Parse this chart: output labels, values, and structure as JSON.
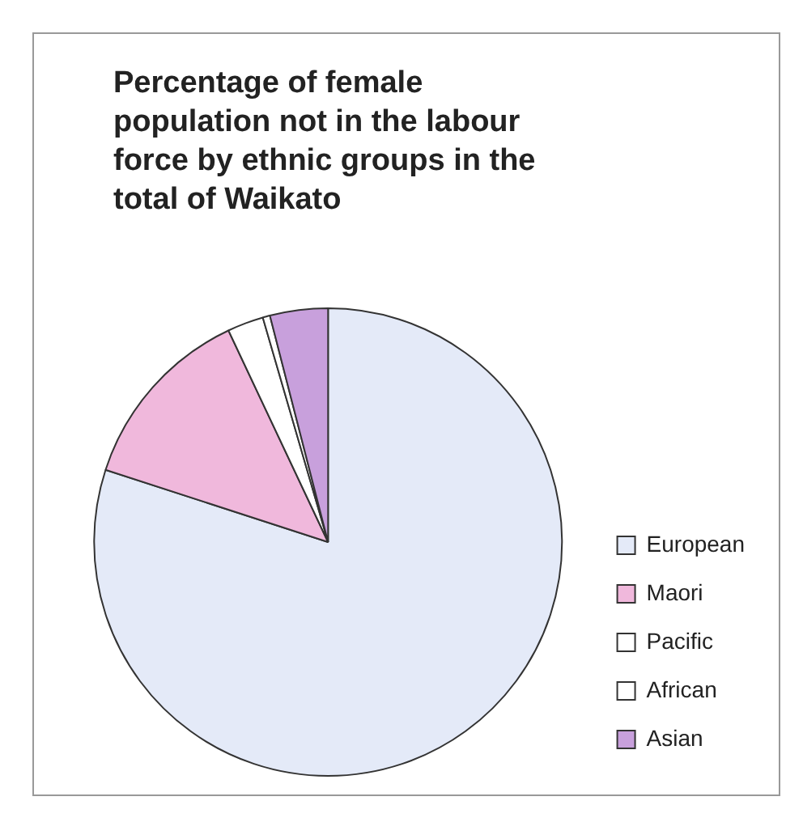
{
  "chart_data": {
    "type": "pie",
    "title": "Percentage of female population not in the labour force by ethnic groups in the total of Waikato",
    "categories": [
      "European",
      "Maori",
      "Pacific",
      "African",
      "Asian"
    ],
    "values": [
      80,
      13,
      2.5,
      0.5,
      4
    ],
    "colors": [
      "#e4eaf8",
      "#f0b8dc",
      "#ffffff",
      "#ffffff",
      "#c8a0dc"
    ],
    "legend": "bottom right"
  }
}
